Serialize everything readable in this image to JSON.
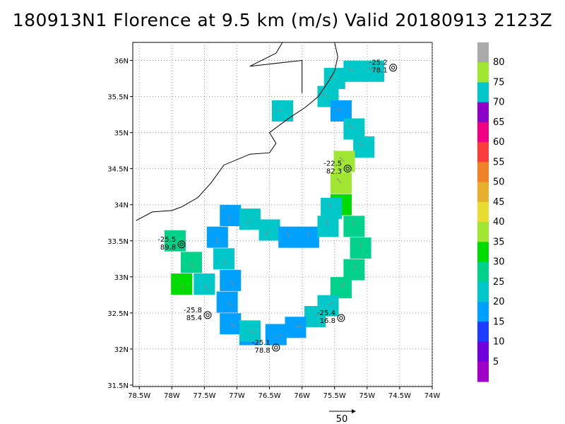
{
  "title": "180913N1 Florence at 9.5 km (m/s) Valid 20180913 2123Z",
  "chart_data": {
    "type": "heatmap",
    "title": "180913N1 Florence at 9.5 km (m/s) Valid 20180913 2123Z",
    "x_ticks": [
      "78.5W",
      "78W",
      "77.5W",
      "77W",
      "76.5W",
      "76W",
      "75.5W",
      "75W",
      "74.5W",
      "74W"
    ],
    "x_values": [
      -78.5,
      -78,
      -77.5,
      -77,
      -76.5,
      -76,
      -75.5,
      -75,
      -74.5,
      -74
    ],
    "y_ticks": [
      "31.5N",
      "32N",
      "32.5N",
      "33N",
      "33.5N",
      "34N",
      "34.5N",
      "35N",
      "35.5N",
      "36N"
    ],
    "y_values": [
      31.5,
      32,
      32.5,
      33,
      33.5,
      34,
      34.5,
      35,
      35.5,
      36
    ],
    "xlim": [
      -78.6,
      -74.0
    ],
    "ylim": [
      31.48,
      36.25
    ],
    "grid": true,
    "colorbar": {
      "labels": [
        "5",
        "10",
        "15",
        "20",
        "25",
        "30",
        "35",
        "40",
        "45",
        "50",
        "55",
        "60",
        "65",
        "70",
        "75",
        "80"
      ],
      "colors": [
        "#a000c8",
        "#6e00dc",
        "#1e3cff",
        "#00a0ff",
        "#00c8c8",
        "#00d28c",
        "#00dc00",
        "#a0e632",
        "#e6dc32",
        "#e6af2d",
        "#f08228",
        "#fa3c3c",
        "#f00082",
        "#8c00c8",
        "#00c8c8",
        "#a0e632",
        "#aaaaaa"
      ]
    },
    "reference_vector": "50",
    "observations": [
      {
        "label1": "-25.2",
        "label2": "78.1",
        "lon": -74.6,
        "lat": 35.9
      },
      {
        "label1": "-22.5",
        "label2": "82.3",
        "lon": -75.3,
        "lat": 34.5
      },
      {
        "label1": "-25.5",
        "label2": "89.8",
        "lon": -77.85,
        "lat": 33.45
      },
      {
        "label1": "-25.8",
        "label2": "85.4",
        "lon": -77.45,
        "lat": 32.47
      },
      {
        "label1": "-25.4",
        "label2": "16.8",
        "lon": -75.4,
        "lat": 32.43
      },
      {
        "label1": "-25.1",
        "label2": "78.8",
        "lon": -76.4,
        "lat": 32.02
      }
    ],
    "wind_band": [
      {
        "lon": -74.9,
        "lat": 35.85,
        "v": 70
      },
      {
        "lon": -75.2,
        "lat": 35.85,
        "v": 70
      },
      {
        "lon": -75.5,
        "lat": 35.75,
        "v": 70
      },
      {
        "lon": -75.6,
        "lat": 35.5,
        "v": 70
      },
      {
        "lon": -75.4,
        "lat": 35.3,
        "v": 15
      },
      {
        "lon": -75.2,
        "lat": 35.05,
        "v": 20
      },
      {
        "lon": -75.05,
        "lat": 34.8,
        "v": 20
      },
      {
        "lon": -75.35,
        "lat": 34.6,
        "v": 35
      },
      {
        "lon": -75.4,
        "lat": 34.3,
        "v": 35
      },
      {
        "lon": -75.4,
        "lat": 34.0,
        "v": 30
      },
      {
        "lon": -75.2,
        "lat": 33.7,
        "v": 25
      },
      {
        "lon": -75.1,
        "lat": 33.4,
        "v": 25
      },
      {
        "lon": -75.2,
        "lat": 33.1,
        "v": 25
      },
      {
        "lon": -75.4,
        "lat": 32.85,
        "v": 25
      },
      {
        "lon": -75.6,
        "lat": 32.6,
        "v": 20
      },
      {
        "lon": -75.8,
        "lat": 32.45,
        "v": 20
      },
      {
        "lon": -76.1,
        "lat": 32.3,
        "v": 15
      },
      {
        "lon": -76.4,
        "lat": 32.2,
        "v": 15
      },
      {
        "lon": -76.8,
        "lat": 32.2,
        "v": 15
      },
      {
        "lon": -77.1,
        "lat": 32.35,
        "v": 15
      },
      {
        "lon": -77.15,
        "lat": 32.65,
        "v": 15
      },
      {
        "lon": -77.1,
        "lat": 32.95,
        "v": 15
      },
      {
        "lon": -77.2,
        "lat": 33.25,
        "v": 20
      },
      {
        "lon": -77.3,
        "lat": 33.55,
        "v": 15
      },
      {
        "lon": -77.1,
        "lat": 33.85,
        "v": 15
      },
      {
        "lon": -76.8,
        "lat": 33.8,
        "v": 70
      },
      {
        "lon": -76.5,
        "lat": 33.65,
        "v": 70
      },
      {
        "lon": -76.2,
        "lat": 33.55,
        "v": 15
      },
      {
        "lon": -75.9,
        "lat": 33.55,
        "v": 15
      },
      {
        "lon": -75.6,
        "lat": 33.7,
        "v": 70
      },
      {
        "lon": -75.55,
        "lat": 33.95,
        "v": 70
      },
      {
        "lon": -77.95,
        "lat": 33.5,
        "v": 25
      },
      {
        "lon": -77.7,
        "lat": 33.2,
        "v": 25
      },
      {
        "lon": -77.5,
        "lat": 32.9,
        "v": 20
      },
      {
        "lon": -77.85,
        "lat": 32.9,
        "v": 30
      },
      {
        "lon": -76.3,
        "lat": 35.3,
        "v": 70
      },
      {
        "lon": -76.8,
        "lat": 32.25,
        "v": 70
      }
    ],
    "coastline": [
      [
        [
          -78.55,
          33.78
        ],
        [
          -78.3,
          33.9
        ],
        [
          -78.0,
          33.92
        ],
        [
          -77.85,
          33.97
        ],
        [
          -77.6,
          34.1
        ],
        [
          -77.4,
          34.3
        ],
        [
          -77.2,
          34.55
        ],
        [
          -76.8,
          34.7
        ],
        [
          -76.5,
          34.72
        ],
        [
          -76.4,
          34.85
        ],
        [
          -76.5,
          35.0
        ],
        [
          -76.2,
          35.2
        ],
        [
          -75.95,
          35.35
        ],
        [
          -75.75,
          35.5
        ],
        [
          -75.6,
          35.7
        ],
        [
          -75.5,
          35.85
        ],
        [
          -75.45,
          36.05
        ],
        [
          -75.5,
          36.25
        ]
      ],
      [
        [
          -76.0,
          35.55
        ],
        [
          -76.0,
          36.0
        ],
        [
          -76.8,
          35.92
        ],
        [
          -76.4,
          36.1
        ],
        [
          -76.3,
          36.25
        ]
      ]
    ]
  }
}
